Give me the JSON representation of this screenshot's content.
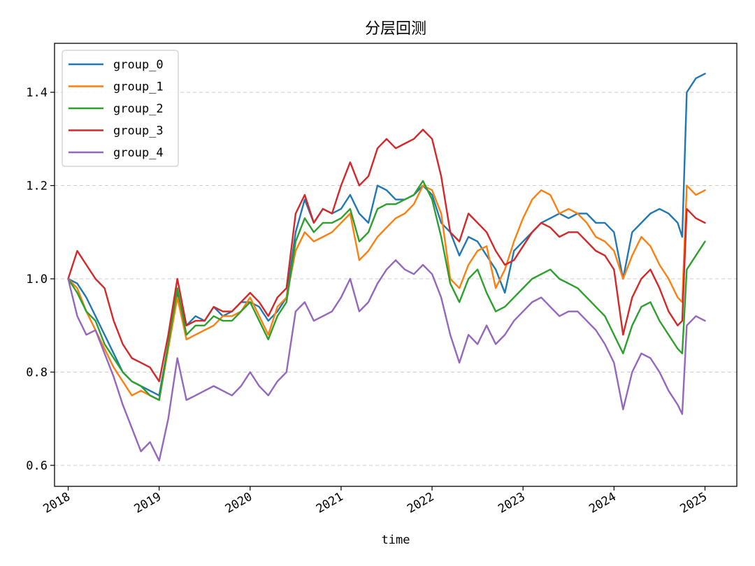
{
  "chart_data": {
    "type": "line",
    "title": "分层回测",
    "xlabel": "time",
    "ylabel": "",
    "xlim": [
      2017.85,
      2025.35
    ],
    "ylim": [
      0.555,
      1.505
    ],
    "x_ticks": [
      2018,
      2019,
      2020,
      2021,
      2022,
      2023,
      2024,
      2025
    ],
    "x_tick_labels": [
      "2018",
      "2019",
      "2020",
      "2021",
      "2022",
      "2023",
      "2024",
      "2025"
    ],
    "y_ticks": [
      0.6,
      0.8,
      1.0,
      1.2,
      1.4
    ],
    "y_tick_labels": [
      "0.6",
      "0.8",
      "1.0",
      "1.2",
      "1.4"
    ],
    "grid": "horizontal-dashed",
    "legend_position": "top-left",
    "x": [
      2018.0,
      2018.1,
      2018.2,
      2018.3,
      2018.4,
      2018.5,
      2018.6,
      2018.7,
      2018.8,
      2018.9,
      2019.0,
      2019.1,
      2019.2,
      2019.3,
      2019.4,
      2019.5,
      2019.6,
      2019.7,
      2019.8,
      2019.9,
      2020.0,
      2020.1,
      2020.2,
      2020.3,
      2020.4,
      2020.5,
      2020.6,
      2020.7,
      2020.8,
      2020.9,
      2021.0,
      2021.1,
      2021.2,
      2021.3,
      2021.4,
      2021.5,
      2021.6,
      2021.7,
      2021.8,
      2021.9,
      2022.0,
      2022.1,
      2022.2,
      2022.3,
      2022.4,
      2022.5,
      2022.6,
      2022.7,
      2022.8,
      2022.9,
      2023.0,
      2023.1,
      2023.2,
      2023.3,
      2023.4,
      2023.5,
      2023.6,
      2023.7,
      2023.8,
      2023.9,
      2024.0,
      2024.1,
      2024.2,
      2024.3,
      2024.4,
      2024.5,
      2024.6,
      2024.7,
      2024.75,
      2024.8,
      2024.9,
      2025.0
    ],
    "series": [
      {
        "name": "group_0",
        "color": "#1f77b4",
        "values": [
          1.0,
          0.99,
          0.96,
          0.92,
          0.88,
          0.84,
          0.8,
          0.78,
          0.77,
          0.76,
          0.75,
          0.86,
          0.97,
          0.9,
          0.92,
          0.91,
          0.94,
          0.92,
          0.93,
          0.95,
          0.95,
          0.94,
          0.91,
          0.93,
          0.96,
          1.1,
          1.17,
          1.12,
          1.15,
          1.14,
          1.15,
          1.18,
          1.14,
          1.12,
          1.2,
          1.19,
          1.17,
          1.17,
          1.18,
          1.2,
          1.18,
          1.12,
          1.1,
          1.05,
          1.09,
          1.08,
          1.05,
          1.02,
          0.97,
          1.06,
          1.08,
          1.1,
          1.12,
          1.13,
          1.14,
          1.13,
          1.14,
          1.14,
          1.12,
          1.12,
          1.1,
          1.0,
          1.1,
          1.12,
          1.14,
          1.15,
          1.14,
          1.12,
          1.09,
          1.4,
          1.43,
          1.44
        ]
      },
      {
        "name": "group_1",
        "color": "#ff7f0e",
        "values": [
          1.0,
          0.98,
          0.93,
          0.89,
          0.85,
          0.81,
          0.78,
          0.75,
          0.76,
          0.75,
          0.74,
          0.85,
          0.96,
          0.87,
          0.88,
          0.89,
          0.9,
          0.92,
          0.92,
          0.93,
          0.96,
          0.92,
          0.88,
          0.94,
          0.96,
          1.06,
          1.1,
          1.08,
          1.09,
          1.1,
          1.12,
          1.14,
          1.04,
          1.06,
          1.09,
          1.11,
          1.13,
          1.14,
          1.16,
          1.2,
          1.19,
          1.14,
          1.0,
          0.98,
          1.03,
          1.06,
          1.07,
          0.98,
          1.02,
          1.08,
          1.13,
          1.17,
          1.19,
          1.18,
          1.14,
          1.15,
          1.14,
          1.12,
          1.09,
          1.08,
          1.06,
          1.0,
          1.05,
          1.09,
          1.07,
          1.03,
          1.0,
          0.96,
          0.95,
          1.2,
          1.18,
          1.19
        ]
      },
      {
        "name": "group_2",
        "color": "#2ca02c",
        "values": [
          1.0,
          0.97,
          0.93,
          0.91,
          0.86,
          0.83,
          0.8,
          0.78,
          0.77,
          0.75,
          0.74,
          0.86,
          0.98,
          0.88,
          0.9,
          0.9,
          0.92,
          0.91,
          0.91,
          0.93,
          0.95,
          0.91,
          0.87,
          0.92,
          0.95,
          1.08,
          1.13,
          1.1,
          1.12,
          1.12,
          1.13,
          1.15,
          1.08,
          1.1,
          1.15,
          1.16,
          1.16,
          1.17,
          1.18,
          1.21,
          1.17,
          1.09,
          0.99,
          0.95,
          1.0,
          1.02,
          0.97,
          0.93,
          0.94,
          0.96,
          0.98,
          1.0,
          1.01,
          1.02,
          1.0,
          0.99,
          0.98,
          0.96,
          0.94,
          0.92,
          0.88,
          0.84,
          0.9,
          0.94,
          0.95,
          0.91,
          0.88,
          0.85,
          0.84,
          1.02,
          1.05,
          1.08
        ]
      },
      {
        "name": "group_3",
        "color": "#d62728",
        "values": [
          1.0,
          1.06,
          1.03,
          1.0,
          0.98,
          0.91,
          0.86,
          0.83,
          0.82,
          0.81,
          0.78,
          0.88,
          1.0,
          0.9,
          0.91,
          0.91,
          0.94,
          0.93,
          0.93,
          0.95,
          0.97,
          0.95,
          0.92,
          0.96,
          0.98,
          1.14,
          1.18,
          1.12,
          1.15,
          1.14,
          1.2,
          1.25,
          1.2,
          1.22,
          1.28,
          1.3,
          1.28,
          1.29,
          1.3,
          1.32,
          1.3,
          1.22,
          1.1,
          1.08,
          1.14,
          1.12,
          1.1,
          1.06,
          1.03,
          1.04,
          1.07,
          1.1,
          1.12,
          1.11,
          1.09,
          1.1,
          1.1,
          1.08,
          1.06,
          1.05,
          1.02,
          0.88,
          0.96,
          1.0,
          1.02,
          0.98,
          0.93,
          0.9,
          0.91,
          1.15,
          1.13,
          1.12
        ]
      },
      {
        "name": "group_4",
        "color": "#9467bd",
        "values": [
          1.0,
          0.92,
          0.88,
          0.89,
          0.84,
          0.79,
          0.73,
          0.68,
          0.63,
          0.65,
          0.61,
          0.7,
          0.83,
          0.74,
          0.75,
          0.76,
          0.77,
          0.76,
          0.75,
          0.77,
          0.8,
          0.77,
          0.75,
          0.78,
          0.8,
          0.93,
          0.95,
          0.91,
          0.92,
          0.93,
          0.96,
          1.0,
          0.93,
          0.95,
          0.99,
          1.02,
          1.04,
          1.02,
          1.01,
          1.03,
          1.01,
          0.96,
          0.88,
          0.82,
          0.88,
          0.86,
          0.9,
          0.86,
          0.88,
          0.91,
          0.93,
          0.95,
          0.96,
          0.94,
          0.92,
          0.93,
          0.93,
          0.91,
          0.89,
          0.86,
          0.82,
          0.72,
          0.8,
          0.84,
          0.83,
          0.8,
          0.76,
          0.73,
          0.71,
          0.9,
          0.92,
          0.91
        ]
      }
    ]
  }
}
